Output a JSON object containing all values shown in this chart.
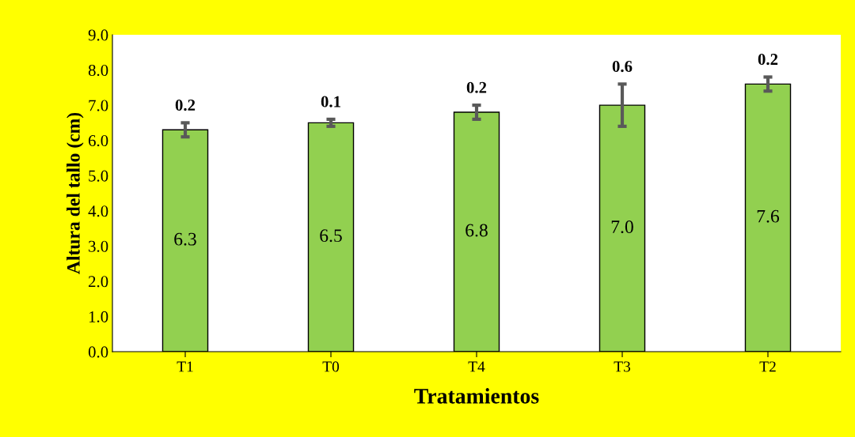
{
  "chart_data": {
    "type": "bar",
    "xlabel": "Tratamientos",
    "ylabel": "Altura del tallo (cm)",
    "categories": [
      "T1",
      "T0",
      "T4",
      "T3",
      "T2"
    ],
    "series": [
      {
        "color": "#92d050",
        "values": [
          6.3,
          6.5,
          6.8,
          7.0,
          7.6
        ],
        "value_labels": [
          "6.3",
          "6.5",
          "6.8",
          "7.0",
          "7.6"
        ],
        "errors": [
          0.2,
          0.1,
          0.2,
          0.6,
          0.2
        ]
      }
    ],
    "ylim": [
      0,
      9
    ],
    "yticks": [
      {
        "value": 0,
        "label": "0.0"
      },
      {
        "value": 1,
        "label": "1.0"
      },
      {
        "value": 2,
        "label": "2.0"
      },
      {
        "value": 3,
        "label": "3.0"
      },
      {
        "value": 4,
        "label": "4.0"
      },
      {
        "value": 5,
        "label": "5.0"
      },
      {
        "value": 6,
        "label": "6.0"
      },
      {
        "value": 7,
        "label": "7.0"
      },
      {
        "value": 8,
        "label": "8.0"
      },
      {
        "value": 9,
        "label": "9.0"
      }
    ],
    "grid": false,
    "legend": false,
    "annotations": [
      {
        "text": "0.2",
        "x": "T1",
        "y": 6.5
      },
      {
        "text": "0.1",
        "x": "T0",
        "y": 6.6
      },
      {
        "text": "0.2",
        "x": "T4",
        "y": 7.0
      },
      {
        "text": "0.6",
        "x": "T3",
        "y": 7.6
      },
      {
        "text": "0.2",
        "x": "T2",
        "y": 7.8
      }
    ]
  }
}
